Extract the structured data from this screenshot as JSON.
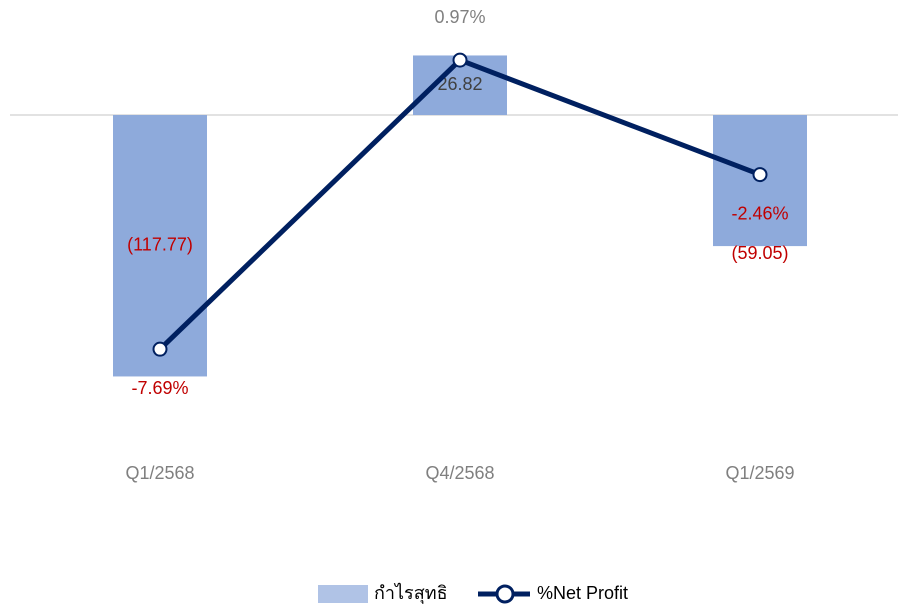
{
  "chart_data": {
    "type": "bar_line",
    "categories": [
      "Q1/2568",
      "Q4/2568",
      "Q1/2569"
    ],
    "series": [
      {
        "name": "กำไรสุทธิ",
        "type": "bar",
        "color": "#8eaadb",
        "values": [
          -117.77,
          26.82,
          -59.05
        ],
        "value_labels": [
          "(117.77)",
          "26.82",
          "(59.05)"
        ]
      },
      {
        "name": "%Net Profit",
        "type": "line",
        "axis": "y2",
        "color": "#002060",
        "values": [
          -7.69,
          0.97,
          -2.46
        ],
        "value_labels": [
          "-7.69%",
          "0.97%",
          "-2.46%"
        ]
      }
    ],
    "ylim": [
      -150,
      50
    ],
    "y2lim": [
      -10.65,
      2.65
    ],
    "legend": "bottom"
  }
}
